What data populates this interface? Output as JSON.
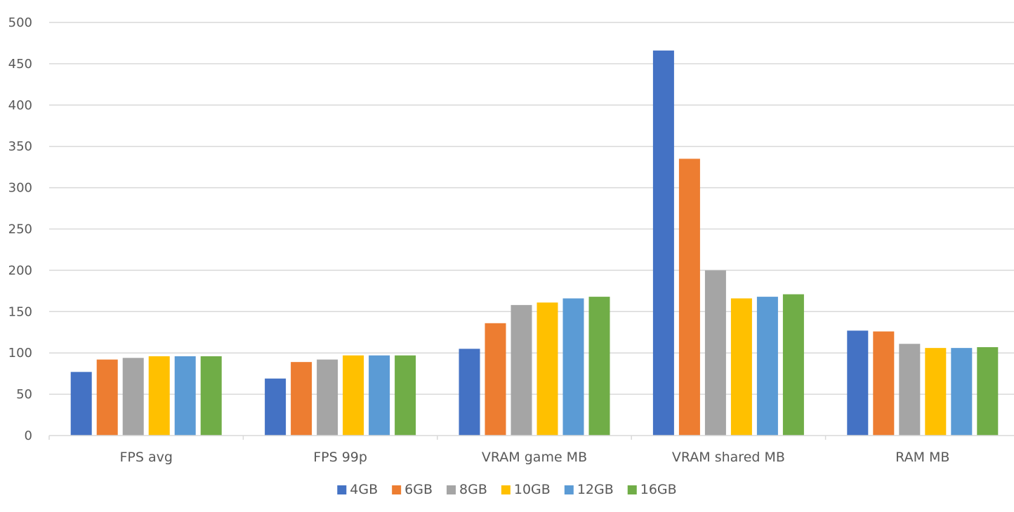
{
  "chart_data": {
    "type": "bar",
    "title": "",
    "xlabel": "",
    "ylabel": "",
    "ylim": [
      0,
      500
    ],
    "yticks": [
      0,
      50,
      100,
      150,
      200,
      250,
      300,
      350,
      400,
      450,
      500
    ],
    "grid": true,
    "legend_position": "bottom",
    "categories": [
      "FPS avg",
      "FPS 99p",
      "VRAM game MB",
      "VRAM shared MB",
      "RAM MB"
    ],
    "series": [
      {
        "name": "4GB",
        "color": "#4472C4",
        "values": [
          77,
          69,
          105,
          466,
          127
        ]
      },
      {
        "name": "6GB",
        "color": "#ED7D31",
        "values": [
          92,
          89,
          136,
          335,
          126
        ]
      },
      {
        "name": "8GB",
        "color": "#A5A5A5",
        "values": [
          94,
          92,
          158,
          200,
          111
        ]
      },
      {
        "name": "10GB",
        "color": "#FFC000",
        "values": [
          96,
          97,
          161,
          166,
          106
        ]
      },
      {
        "name": "12GB",
        "color": "#5B9BD5",
        "values": [
          96,
          97,
          166,
          168,
          106
        ]
      },
      {
        "name": "16GB",
        "color": "#70AD47",
        "values": [
          96,
          97,
          168,
          171,
          107
        ]
      }
    ]
  }
}
